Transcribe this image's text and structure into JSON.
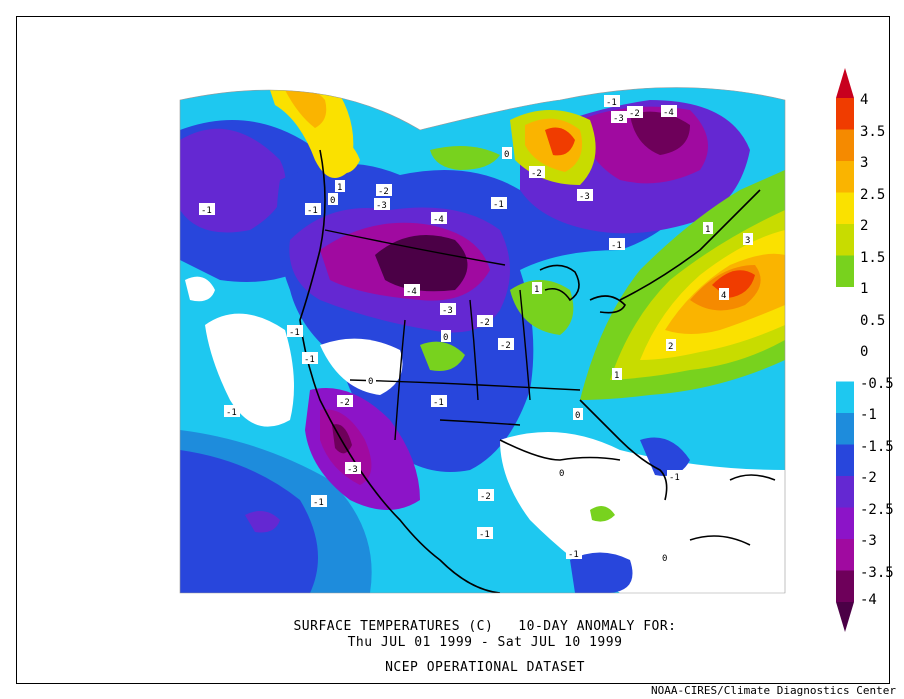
{
  "map": {
    "title_line1": "SURFACE TEMPERATURES (C)   10-DAY ANOMALY FOR:",
    "title_line2": "Thu JUL 01 1999 - Sat JUL 10 1999",
    "dataset": "NCEP OPERATIONAL DATASET",
    "credit": "NOAA-CIRES/Climate Diagnostics Center",
    "contour_labels": [
      "-1",
      "-2",
      "-3",
      "-4",
      "0",
      "1",
      "2",
      "3",
      "4"
    ]
  },
  "colorbar": {
    "levels": [
      "4",
      "3.5",
      "3",
      "2.5",
      "2",
      "1.5",
      "1",
      "0.5",
      "0",
      "-0.5",
      "-1",
      "-1.5",
      "-2",
      "-2.5",
      "-3",
      "-3.5",
      "-4"
    ],
    "colors": {
      "gt4": "#c8001e",
      "3.5-4": "#f03c00",
      "3-3.5": "#f58a00",
      "2.5-3": "#fab400",
      "2-2.5": "#fae100",
      "1.5-2": "#c8dc00",
      "1-1.5": "#78d21e",
      "0.5-1": "#ffffff",
      "0-0.5": "#ffffff",
      "-0.5-0": "#ffffff",
      "-1--0.5": "#1ec8f0",
      "-1.5--1": "#1e8cdc",
      "-2--1.5": "#2846dc",
      "-2.5--2": "#6428d2",
      "-3--2.5": "#8c14c8",
      "-3.5--3": "#a00aa0",
      "-4--3.5": "#6e005a",
      "lt-4": "#4b0046"
    }
  }
}
